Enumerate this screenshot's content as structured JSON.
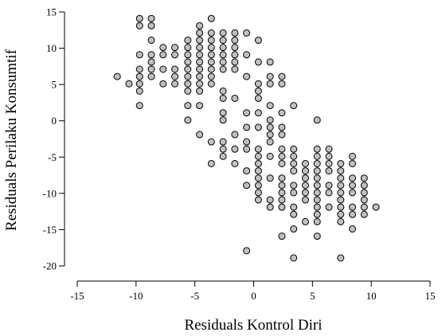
{
  "chart_data": {
    "type": "scatter",
    "xlabel": "Residuals Kontrol Diri",
    "ylabel": "Residuals Perilaku Konsumtif",
    "xlim": [
      -15,
      15
    ],
    "ylim": [
      -20,
      15
    ],
    "xticks": [
      -15,
      -10,
      -5,
      0,
      5,
      10,
      15
    ],
    "yticks": [
      15,
      10,
      5,
      0,
      -5,
      -10,
      -15,
      -20
    ],
    "grid": false,
    "points": [
      [
        -11.6,
        6.1
      ],
      [
        -10.6,
        5.1
      ],
      [
        -9.7,
        14.1
      ],
      [
        -9.7,
        13.1
      ],
      [
        -9.7,
        9.1
      ],
      [
        -9.7,
        7.1
      ],
      [
        -9.7,
        6.1
      ],
      [
        -9.7,
        5.1
      ],
      [
        -9.7,
        4.1
      ],
      [
        -9.7,
        2.1
      ],
      [
        -8.7,
        14.1
      ],
      [
        -8.7,
        13.1
      ],
      [
        -8.7,
        11.1
      ],
      [
        -8.7,
        9.1
      ],
      [
        -8.7,
        8.1
      ],
      [
        -8.7,
        7.1
      ],
      [
        -8.7,
        6.1
      ],
      [
        -7.7,
        10.1
      ],
      [
        -7.7,
        9.1
      ],
      [
        -7.7,
        7.1
      ],
      [
        -7.7,
        5.1
      ],
      [
        -6.7,
        10.1
      ],
      [
        -6.7,
        9.1
      ],
      [
        -6.7,
        7.1
      ],
      [
        -6.7,
        6.1
      ],
      [
        -6.7,
        5.1
      ],
      [
        -5.6,
        11.1
      ],
      [
        -5.6,
        10.1
      ],
      [
        -5.6,
        9.1
      ],
      [
        -5.6,
        8.1
      ],
      [
        -5.6,
        7.1
      ],
      [
        -5.6,
        6.1
      ],
      [
        -5.6,
        5.1
      ],
      [
        -5.6,
        4.1
      ],
      [
        -5.6,
        2.1
      ],
      [
        -5.6,
        0.1
      ],
      [
        -4.6,
        13.1
      ],
      [
        -4.6,
        12.1
      ],
      [
        -4.6,
        11.1
      ],
      [
        -4.6,
        10.1
      ],
      [
        -4.6,
        9.1
      ],
      [
        -4.6,
        8.1
      ],
      [
        -4.6,
        7.1
      ],
      [
        -4.6,
        6.1
      ],
      [
        -4.6,
        5.1
      ],
      [
        -4.6,
        4.1
      ],
      [
        -4.6,
        2.1
      ],
      [
        -4.6,
        -1.9
      ],
      [
        -3.6,
        14.1
      ],
      [
        -3.6,
        12.1
      ],
      [
        -3.6,
        11.1
      ],
      [
        -3.6,
        10.1
      ],
      [
        -3.6,
        9.1
      ],
      [
        -3.6,
        8.1
      ],
      [
        -3.6,
        7.1
      ],
      [
        -3.6,
        6.1
      ],
      [
        -3.6,
        5.1
      ],
      [
        -3.6,
        -2.9
      ],
      [
        -3.6,
        -5.9
      ],
      [
        -2.6,
        12.1
      ],
      [
        -2.6,
        11.1
      ],
      [
        -2.6,
        10.1
      ],
      [
        -2.6,
        9.1
      ],
      [
        -2.6,
        8.1
      ],
      [
        -2.6,
        7.1
      ],
      [
        -2.6,
        4.1
      ],
      [
        -2.6,
        3.1
      ],
      [
        -2.6,
        1.1
      ],
      [
        -2.6,
        0.1
      ],
      [
        -2.6,
        -2.9
      ],
      [
        -2.6,
        -3.9
      ],
      [
        -2.6,
        -4.9
      ],
      [
        -1.6,
        12.1
      ],
      [
        -1.6,
        11.1
      ],
      [
        -1.6,
        10.1
      ],
      [
        -1.6,
        9.1
      ],
      [
        -1.6,
        8.1
      ],
      [
        -1.6,
        7.1
      ],
      [
        -1.6,
        3.1
      ],
      [
        -1.6,
        -1.9
      ],
      [
        -1.6,
        -3.9
      ],
      [
        -1.6,
        -5.9
      ],
      [
        -0.6,
        12.1
      ],
      [
        -0.6,
        9.1
      ],
      [
        -0.6,
        6.1
      ],
      [
        -0.6,
        1.1
      ],
      [
        -0.6,
        -0.9
      ],
      [
        -0.6,
        -2.9
      ],
      [
        -0.6,
        -3.9
      ],
      [
        -0.6,
        -6.9
      ],
      [
        -0.6,
        -8.9
      ],
      [
        -0.6,
        -17.9
      ],
      [
        0.4,
        11.1
      ],
      [
        0.4,
        8.1
      ],
      [
        0.4,
        5.1
      ],
      [
        0.4,
        4.1
      ],
      [
        0.4,
        3.1
      ],
      [
        0.4,
        1.1
      ],
      [
        0.4,
        -0.9
      ],
      [
        0.4,
        -3.9
      ],
      [
        0.4,
        -4.9
      ],
      [
        0.4,
        -5.9
      ],
      [
        0.4,
        -6.9
      ],
      [
        0.4,
        -7.9
      ],
      [
        0.4,
        -8.9
      ],
      [
        0.4,
        -9.9
      ],
      [
        0.4,
        -10.9
      ],
      [
        1.4,
        8.1
      ],
      [
        1.4,
        6.1
      ],
      [
        1.4,
        5.1
      ],
      [
        1.4,
        2.1
      ],
      [
        1.4,
        0.1
      ],
      [
        1.4,
        -0.9
      ],
      [
        1.4,
        -1.9
      ],
      [
        1.4,
        -2.9
      ],
      [
        1.4,
        -4.9
      ],
      [
        1.4,
        -7.9
      ],
      [
        1.4,
        -10.9
      ],
      [
        1.4,
        -11.9
      ],
      [
        2.4,
        6.1
      ],
      [
        2.4,
        5.1
      ],
      [
        2.4,
        1.1
      ],
      [
        2.4,
        -0.9
      ],
      [
        2.4,
        -1.9
      ],
      [
        2.4,
        -3.9
      ],
      [
        2.4,
        -4.9
      ],
      [
        2.4,
        -5.9
      ],
      [
        2.4,
        -7.9
      ],
      [
        2.4,
        -8.9
      ],
      [
        2.4,
        -9.9
      ],
      [
        2.4,
        -10.9
      ],
      [
        2.4,
        -11.9
      ],
      [
        2.4,
        -15.9
      ],
      [
        3.4,
        2.1
      ],
      [
        3.4,
        -3.9
      ],
      [
        3.4,
        -4.9
      ],
      [
        3.4,
        -5.9
      ],
      [
        3.4,
        -6.9
      ],
      [
        3.4,
        -8.9
      ],
      [
        3.4,
        -9.9
      ],
      [
        3.4,
        -11.9
      ],
      [
        3.4,
        -12.9
      ],
      [
        3.4,
        -14.9
      ],
      [
        3.4,
        -18.9
      ],
      [
        4.4,
        -5.9
      ],
      [
        4.4,
        -6.9
      ],
      [
        4.4,
        -7.9
      ],
      [
        4.4,
        -8.9
      ],
      [
        4.4,
        -9.9
      ],
      [
        4.4,
        -10.9
      ],
      [
        4.4,
        -13.9
      ],
      [
        5.4,
        0.1
      ],
      [
        5.4,
        -3.9
      ],
      [
        5.4,
        -4.9
      ],
      [
        5.4,
        -5.9
      ],
      [
        5.4,
        -6.9
      ],
      [
        5.4,
        -7.9
      ],
      [
        5.4,
        -8.9
      ],
      [
        5.4,
        -9.9
      ],
      [
        5.4,
        -10.9
      ],
      [
        5.4,
        -11.9
      ],
      [
        5.4,
        -12.9
      ],
      [
        5.4,
        -13.9
      ],
      [
        5.4,
        -15.9
      ],
      [
        6.4,
        -3.9
      ],
      [
        6.4,
        -4.9
      ],
      [
        6.4,
        -5.9
      ],
      [
        6.4,
        -6.9
      ],
      [
        6.4,
        -8.9
      ],
      [
        6.4,
        -9.9
      ],
      [
        6.4,
        -11.9
      ],
      [
        7.4,
        -5.9
      ],
      [
        7.4,
        -6.9
      ],
      [
        7.4,
        -7.9
      ],
      [
        7.4,
        -8.9
      ],
      [
        7.4,
        -9.9
      ],
      [
        7.4,
        -10.9
      ],
      [
        7.4,
        -11.9
      ],
      [
        7.4,
        -12.9
      ],
      [
        7.4,
        -13.9
      ],
      [
        7.4,
        -18.9
      ],
      [
        8.4,
        -4.9
      ],
      [
        8.4,
        -5.9
      ],
      [
        8.4,
        -7.9
      ],
      [
        8.4,
        -8.9
      ],
      [
        8.4,
        -9.9
      ],
      [
        8.4,
        -11.9
      ],
      [
        8.4,
        -12.9
      ],
      [
        8.4,
        -14.9
      ],
      [
        9.4,
        -7.9
      ],
      [
        9.4,
        -8.9
      ],
      [
        9.4,
        -9.9
      ],
      [
        9.4,
        -10.9
      ],
      [
        9.4,
        -11.9
      ],
      [
        9.4,
        -12.9
      ],
      [
        10.4,
        -11.9
      ]
    ]
  }
}
